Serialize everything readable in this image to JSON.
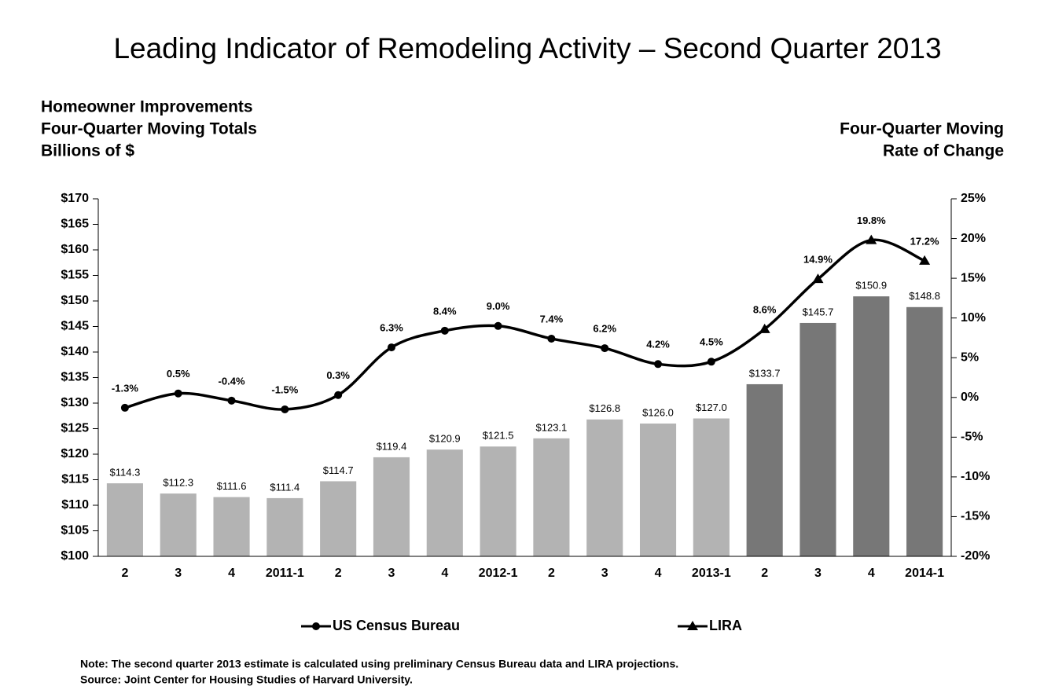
{
  "chart_data": {
    "type": "bar",
    "title": "Leading Indicator of Remodeling Activity – Second Quarter 2013",
    "y_axis_title": [
      "Homeowner Improvements",
      "Four-Quarter Moving Totals",
      "Billions of $"
    ],
    "y2_axis_title": [
      "Four-Quarter Moving",
      "Rate of Change"
    ],
    "categories": [
      "2",
      "3",
      "4",
      "2011-1",
      "2",
      "3",
      "4",
      "2012-1",
      "2",
      "3",
      "4",
      "2013-1",
      "2",
      "3",
      "4",
      "2014-1"
    ],
    "series": [
      {
        "colors": [
          "#b3b3b3",
          "#b3b3b3",
          "#b3b3b3",
          "#b3b3b3",
          "#b3b3b3",
          "#b3b3b3",
          "#b3b3b3",
          "#b3b3b3",
          "#b3b3b3",
          "#b3b3b3",
          "#b3b3b3",
          "#b3b3b3",
          "#777777",
          "#777777",
          "#777777",
          "#777777"
        ],
        "values": [
          114.3,
          112.3,
          111.6,
          111.4,
          114.7,
          119.4,
          120.9,
          121.5,
          123.1,
          126.8,
          126.0,
          127.0,
          133.7,
          145.7,
          150.9,
          148.8
        ],
        "value_labels": [
          "$114.3",
          "$112.3",
          "$111.6",
          "$111.4",
          "$114.7",
          "$119.4",
          "$120.9",
          "$121.5",
          "$123.1",
          "$126.8",
          "$126.0",
          "$127.0",
          "$133.7",
          "$145.7",
          "$150.9",
          "$148.8"
        ]
      },
      {
        "name": "US Census Bureau",
        "color": "#000000",
        "axis": "y2",
        "marker": "circle",
        "values": [
          -1.3,
          0.5,
          -0.4,
          -1.5,
          0.3,
          6.3,
          8.4,
          9.0,
          7.4,
          6.2,
          4.2,
          4.5,
          null,
          null,
          null,
          null
        ],
        "value_labels": [
          "-1.3%",
          "0.5%",
          "-0.4%",
          "-1.5%",
          "0.3%",
          "6.3%",
          "8.4%",
          "9.0%",
          "7.4%",
          "6.2%",
          "4.2%",
          "4.5%",
          null,
          null,
          null,
          null
        ]
      },
      {
        "name": "LIRA",
        "color": "#000000",
        "axis": "y2",
        "marker": "triangle",
        "values": [
          null,
          null,
          null,
          null,
          null,
          null,
          null,
          null,
          null,
          null,
          null,
          null,
          8.6,
          14.9,
          19.8,
          17.2
        ],
        "value_labels": [
          null,
          null,
          null,
          null,
          null,
          null,
          null,
          null,
          null,
          null,
          null,
          null,
          "8.6%",
          "14.9%",
          "19.8%",
          "17.2%"
        ]
      }
    ],
    "ylim": [
      100,
      170
    ],
    "yticks": [
      {
        "value": 100,
        "label": "$100"
      },
      {
        "value": 105,
        "label": "$105"
      },
      {
        "value": 110,
        "label": "$110"
      },
      {
        "value": 115,
        "label": "$115"
      },
      {
        "value": 120,
        "label": "$120"
      },
      {
        "value": 125,
        "label": "$125"
      },
      {
        "value": 130,
        "label": "$130"
      },
      {
        "value": 135,
        "label": "$135"
      },
      {
        "value": 140,
        "label": "$140"
      },
      {
        "value": 145,
        "label": "$145"
      },
      {
        "value": 150,
        "label": "$150"
      },
      {
        "value": 155,
        "label": "$155"
      },
      {
        "value": 160,
        "label": "$160"
      },
      {
        "value": 165,
        "label": "$165"
      },
      {
        "value": 170,
        "label": "$170"
      }
    ],
    "y2lim": [
      -20,
      25
    ],
    "y2ticks": [
      {
        "value": -20,
        "label": "-20%"
      },
      {
        "value": -15,
        "label": "-15%"
      },
      {
        "value": -10,
        "label": "-10%"
      },
      {
        "value": -5,
        "label": "-5%"
      },
      {
        "value": 0,
        "label": "0%"
      },
      {
        "value": 5,
        "label": "5%"
      },
      {
        "value": 10,
        "label": "10%"
      },
      {
        "value": 15,
        "label": "15%"
      },
      {
        "value": 20,
        "label": "20%"
      },
      {
        "value": 25,
        "label": "25%"
      }
    ],
    "grid": false,
    "notes": [
      "Note: The second quarter 2013 estimate is calculated using preliminary Census Bureau data and LIRA projections.",
      "Source: Joint Center for Housing Studies of Harvard University."
    ]
  }
}
